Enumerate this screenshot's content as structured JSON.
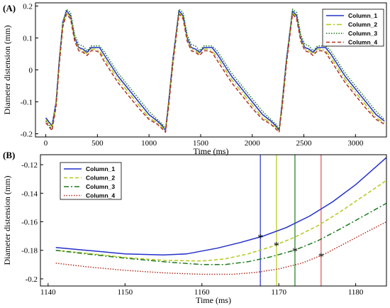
{
  "chart_data": [
    {
      "type": "line",
      "panel_label": "(A)",
      "xlabel": "Time (ms)",
      "ylabel": "Diameter distension (mm)",
      "xlim": [
        -100,
        3300
      ],
      "ylim": [
        -0.21,
        0.21
      ],
      "xticks": [
        0,
        500,
        1000,
        1500,
        2000,
        2500,
        3000
      ],
      "yticks": [
        -0.2,
        -0.1,
        0,
        0.1,
        0.2
      ],
      "xtick_labels": [
        "0",
        "500",
        "1000",
        "1500",
        "2000",
        "2500",
        "3000"
      ],
      "ytick_labels": [
        "-0.2",
        "-0.1",
        "0",
        "0.1",
        "0.2"
      ],
      "legend_position": "top-right",
      "grid": false,
      "series": [
        {
          "name": "Column_1",
          "color": "#2230c8",
          "style": "solid",
          "x": [
            0,
            60,
            100,
            130,
            165,
            200,
            240,
            280,
            320,
            360,
            400,
            440,
            480,
            520,
            560,
            600,
            700,
            800,
            900,
            1000,
            1080,
            1130,
            1160,
            1190,
            1230,
            1290,
            1330,
            1370,
            1410,
            1450,
            1490,
            1530,
            1570,
            1610,
            1660,
            1700,
            1800,
            1900,
            2000,
            2100,
            2180,
            2230,
            2260,
            2290,
            2330,
            2390,
            2430,
            2470,
            2510,
            2550,
            2590,
            2630,
            2670,
            2710,
            2760,
            2800,
            2900,
            3000,
            3100,
            3200,
            3280
          ],
          "y": [
            -0.15,
            -0.175,
            -0.1,
            0.03,
            0.15,
            0.185,
            0.17,
            0.1,
            0.07,
            0.065,
            0.055,
            0.07,
            0.07,
            0.07,
            0.05,
            0.03,
            -0.02,
            -0.06,
            -0.1,
            -0.14,
            -0.16,
            -0.175,
            -0.19,
            -0.1,
            0.03,
            0.185,
            0.17,
            0.1,
            0.07,
            0.065,
            0.055,
            0.07,
            0.07,
            0.07,
            0.05,
            0.03,
            -0.02,
            -0.06,
            -0.1,
            -0.14,
            -0.16,
            -0.175,
            -0.19,
            -0.1,
            0.03,
            0.185,
            0.17,
            0.1,
            0.07,
            0.065,
            0.055,
            0.07,
            0.07,
            0.07,
            0.05,
            0.03,
            -0.02,
            -0.06,
            -0.1,
            -0.14,
            -0.16
          ]
        },
        {
          "name": "Column_2",
          "color": "#b5c81a",
          "style": "dashdot",
          "x": [
            0,
            60,
            100,
            130,
            165,
            200,
            240,
            280,
            320,
            360,
            400,
            440,
            480,
            520,
            560,
            600,
            700,
            800,
            900,
            1000,
            1080,
            1130,
            1160,
            1190,
            1230,
            1290,
            1330,
            1370,
            1410,
            1450,
            1490,
            1530,
            1570,
            1610,
            1660,
            1700,
            1800,
            1900,
            2000,
            2100,
            2180,
            2230,
            2260,
            2290,
            2330,
            2390,
            2430,
            2470,
            2510,
            2550,
            2590,
            2630,
            2670,
            2710,
            2760,
            2800,
            2900,
            3000,
            3100,
            3200,
            3280
          ],
          "y": [
            -0.155,
            -0.18,
            -0.105,
            0.025,
            0.145,
            0.18,
            0.165,
            0.095,
            0.065,
            0.06,
            0.05,
            0.065,
            0.065,
            0.06,
            0.04,
            0.02,
            -0.03,
            -0.07,
            -0.11,
            -0.15,
            -0.165,
            -0.18,
            -0.19,
            -0.105,
            0.025,
            0.18,
            0.165,
            0.095,
            0.065,
            0.06,
            0.05,
            0.065,
            0.065,
            0.06,
            0.04,
            0.02,
            -0.03,
            -0.07,
            -0.11,
            -0.15,
            -0.165,
            -0.18,
            -0.19,
            -0.105,
            0.025,
            0.18,
            0.165,
            0.095,
            0.065,
            0.06,
            0.05,
            0.065,
            0.065,
            0.06,
            0.04,
            0.02,
            -0.03,
            -0.07,
            -0.11,
            -0.15,
            -0.165
          ]
        },
        {
          "name": "Column_3",
          "color": "#1e7a1e",
          "style": "dotted",
          "x": [
            0,
            60,
            100,
            130,
            165,
            200,
            240,
            280,
            320,
            360,
            400,
            440,
            480,
            520,
            560,
            600,
            700,
            800,
            900,
            1000,
            1080,
            1130,
            1160,
            1190,
            1230,
            1290,
            1330,
            1370,
            1410,
            1450,
            1490,
            1530,
            1570,
            1610,
            1660,
            1700,
            1800,
            1900,
            2000,
            2100,
            2180,
            2230,
            2260,
            2290,
            2330,
            2390,
            2430,
            2470,
            2510,
            2550,
            2590,
            2630,
            2670,
            2710,
            2760,
            2800,
            2900,
            3000,
            3100,
            3200,
            3280
          ],
          "y": [
            -0.16,
            -0.185,
            -0.11,
            0.02,
            0.14,
            0.19,
            0.18,
            0.11,
            0.08,
            0.075,
            0.06,
            0.075,
            0.075,
            0.075,
            0.06,
            0.04,
            -0.01,
            -0.05,
            -0.09,
            -0.13,
            -0.155,
            -0.17,
            -0.185,
            -0.11,
            0.02,
            0.19,
            0.18,
            0.11,
            0.08,
            0.075,
            0.06,
            0.075,
            0.075,
            0.075,
            0.06,
            0.04,
            -0.01,
            -0.05,
            -0.09,
            -0.13,
            -0.155,
            -0.17,
            -0.185,
            -0.11,
            0.02,
            0.19,
            0.18,
            0.11,
            0.08,
            0.075,
            0.06,
            0.075,
            0.075,
            0.075,
            0.06,
            0.04,
            -0.01,
            -0.05,
            -0.09,
            -0.13,
            -0.155
          ]
        },
        {
          "name": "Column_4",
          "color": "#b03020",
          "style": "dashed",
          "x": [
            0,
            60,
            100,
            130,
            165,
            200,
            240,
            280,
            320,
            360,
            400,
            440,
            480,
            520,
            560,
            600,
            700,
            800,
            900,
            1000,
            1080,
            1130,
            1160,
            1190,
            1230,
            1290,
            1330,
            1370,
            1410,
            1450,
            1490,
            1530,
            1570,
            1610,
            1660,
            1700,
            1800,
            1900,
            2000,
            2100,
            2180,
            2230,
            2260,
            2290,
            2330,
            2390,
            2430,
            2470,
            2510,
            2550,
            2590,
            2630,
            2670,
            2710,
            2760,
            2800,
            2900,
            3000,
            3100,
            3200,
            3280
          ],
          "y": [
            -0.165,
            -0.19,
            -0.115,
            0.015,
            0.135,
            0.175,
            0.16,
            0.09,
            0.06,
            0.055,
            0.045,
            0.06,
            0.06,
            0.055,
            0.03,
            0.01,
            -0.04,
            -0.08,
            -0.12,
            -0.155,
            -0.17,
            -0.185,
            -0.195,
            -0.115,
            0.015,
            0.175,
            0.16,
            0.09,
            0.06,
            0.055,
            0.045,
            0.06,
            0.06,
            0.055,
            0.03,
            0.01,
            -0.04,
            -0.08,
            -0.12,
            -0.155,
            -0.17,
            -0.185,
            -0.195,
            -0.115,
            0.015,
            0.175,
            0.16,
            0.09,
            0.06,
            0.055,
            0.045,
            0.06,
            0.06,
            0.055,
            0.03,
            0.01,
            -0.04,
            -0.08,
            -0.12,
            -0.155,
            -0.17
          ]
        }
      ]
    },
    {
      "type": "line",
      "panel_label": "(B)",
      "xlabel": "Time (ms)",
      "ylabel": "Diameter distension (mm)",
      "xlim": [
        1139,
        1184
      ],
      "ylim": [
        -0.205,
        -0.113
      ],
      "xticks": [
        1140,
        1150,
        1160,
        1170,
        1180
      ],
      "yticks": [
        -0.2,
        -0.18,
        -0.16,
        -0.14,
        -0.12
      ],
      "xtick_labels": [
        "1140",
        "1150",
        "1160",
        "1170",
        "1180"
      ],
      "ytick_labels": [
        "-0.2",
        "-0.18",
        "-0.16",
        "-0.14",
        "-0.12"
      ],
      "legend_position": "top-left",
      "grid": false,
      "series": [
        {
          "name": "Column_1",
          "color": "#2230c8",
          "style": "solid",
          "x": [
            1141,
            1145,
            1150,
            1155,
            1158,
            1162,
            1165,
            1168,
            1171,
            1174,
            1177,
            1180,
            1184
          ],
          "y": [
            -0.178,
            -0.18,
            -0.1825,
            -0.1832,
            -0.1825,
            -0.1785,
            -0.1745,
            -0.17,
            -0.164,
            -0.156,
            -0.146,
            -0.134,
            -0.115
          ]
        },
        {
          "name": "Column_2",
          "color": "#b5c81a",
          "style": "dashed",
          "x": [
            1141,
            1145,
            1150,
            1155,
            1160,
            1163,
            1166,
            1169,
            1172,
            1175,
            1178,
            1181,
            1184
          ],
          "y": [
            -0.18,
            -0.182,
            -0.185,
            -0.187,
            -0.1875,
            -0.186,
            -0.1825,
            -0.1775,
            -0.171,
            -0.163,
            -0.153,
            -0.142,
            -0.131
          ]
        },
        {
          "name": "Column_3",
          "color": "#1e7a1e",
          "style": "dashdot",
          "x": [
            1141,
            1145,
            1150,
            1155,
            1160,
            1163,
            1166,
            1169,
            1172,
            1175,
            1178,
            1181,
            1184
          ],
          "y": [
            -0.18,
            -0.1825,
            -0.1855,
            -0.188,
            -0.19,
            -0.19,
            -0.188,
            -0.1845,
            -0.18,
            -0.1735,
            -0.165,
            -0.156,
            -0.147
          ]
        },
        {
          "name": "Column_4",
          "color": "#b03020",
          "style": "dotted",
          "x": [
            1141,
            1145,
            1150,
            1155,
            1160,
            1164,
            1167,
            1170,
            1173,
            1176,
            1179,
            1182,
            1184
          ],
          "y": [
            -0.189,
            -0.1915,
            -0.194,
            -0.1958,
            -0.1968,
            -0.1968,
            -0.1955,
            -0.193,
            -0.189,
            -0.1825,
            -0.174,
            -0.1655,
            -0.16
          ]
        }
      ],
      "vertical_lines": [
        {
          "x": 1167.6,
          "color": "#2230c8"
        },
        {
          "x": 1169.7,
          "color": "#b5c81a"
        },
        {
          "x": 1172.1,
          "color": "#1e7a1e"
        },
        {
          "x": 1175.5,
          "color": "#e05050"
        }
      ],
      "markers": [
        {
          "x": 1167.6,
          "y": -0.171
        },
        {
          "x": 1169.7,
          "y": -0.1765
        },
        {
          "x": 1172.1,
          "y": -0.1805
        },
        {
          "x": 1175.5,
          "y": -0.184
        }
      ]
    }
  ]
}
